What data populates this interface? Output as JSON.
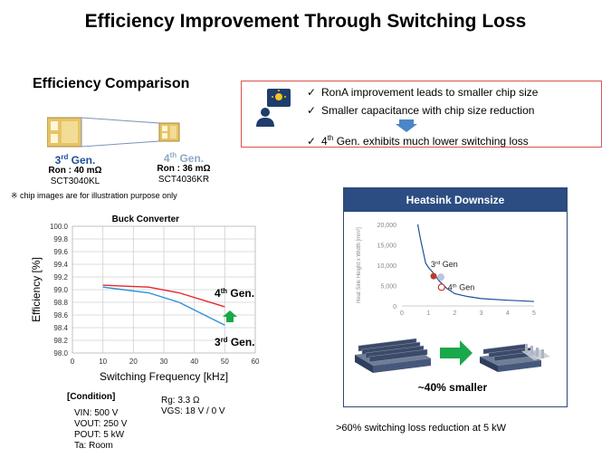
{
  "page": {
    "title": "Efficiency Improvement Through Switching Loss",
    "efficiency_heading": "Efficiency Comparison",
    "chip_note": "※ chip images are for illustration purpose only"
  },
  "chips": {
    "gen3": {
      "name_main": "3",
      "name_sup": "rd",
      "name_rest": " Gen.",
      "ron": "Ron : 40 mΩ",
      "part": "SCT3040KL"
    },
    "gen4": {
      "name_main": "4",
      "name_sup": "th",
      "name_rest": " Gen.",
      "ron": "Ron : 36 mΩ",
      "part": "SCT4036KR"
    }
  },
  "info_box": {
    "bullet1": "RonA improvement leads to smaller chip size",
    "bullet2": "Smaller capacitance with chip size reduction",
    "bullet3_main": "4",
    "bullet3_sup": "th",
    "bullet3_rest": " Gen. exhibits much lower switching loss",
    "check": "✓"
  },
  "heatsink": {
    "title": "Heatsink Downsize",
    "smaller_label": "~40% smaller",
    "footer_note": ">60% switching loss reduction at 5 kW"
  },
  "conditions": {
    "label": "[Condition]",
    "vin": "VIN: 500 V",
    "vout": "VOUT: 250 V",
    "pout": "POUT:  5 kW",
    "ta": "Ta: Room",
    "rg": "Rg: 3.3 Ω",
    "vgs": "VGS: 18 V / 0 V"
  },
  "colors": {
    "gen4_line": "#e8262b",
    "gen3_line": "#2f8fd8",
    "arrow_green": "#1aa84a",
    "panel_blue": "#2b4d82"
  },
  "chart_data": [
    {
      "type": "line",
      "title": "Buck Converter",
      "xlabel": "Switching Frequency [kHz]",
      "ylabel": "Efficiency [%]",
      "xlim": [
        0,
        60
      ],
      "ylim": [
        98.0,
        100.0
      ],
      "x_ticks": [
        "0",
        "10",
        "20",
        "30",
        "40",
        "50",
        "60"
      ],
      "y_ticks": [
        "98.0",
        "98.2",
        "98.4",
        "98.6",
        "98.8",
        "99.0",
        "99.2",
        "99.4",
        "99.6",
        "99.8",
        "100.0"
      ],
      "grid": true,
      "series": [
        {
          "name": "4th Gen.",
          "label_main": "4",
          "label_sup": "th",
          "label_rest": " Gen.",
          "color": "#e8262b",
          "x": [
            10,
            25,
            35,
            50
          ],
          "y": [
            99.07,
            99.04,
            98.95,
            98.73
          ]
        },
        {
          "name": "3rd Gen.",
          "label_main": "3",
          "label_sup": "rd",
          "label_rest": " Gen.",
          "color": "#2f8fd8",
          "x": [
            10,
            25,
            35,
            50
          ],
          "y": [
            99.04,
            98.95,
            98.8,
            98.44
          ]
        }
      ]
    },
    {
      "type": "line",
      "title": "",
      "xlabel": "Heat Resistance [K/W]",
      "ylabel": "Heat Sink Height x Width [mm²]",
      "xlim": [
        0,
        5
      ],
      "ylim": [
        0,
        20000
      ],
      "x_ticks": [
        "0",
        "1",
        "2",
        "3",
        "4",
        "5"
      ],
      "y_ticks": [
        "0",
        "5,000",
        "10,000",
        "15,000",
        "20,000"
      ],
      "grid": false,
      "series": [
        {
          "color": "#1f4e9c",
          "x": [
            0.6,
            0.7,
            0.8,
            0.9,
            1.0,
            1.2,
            1.4,
            1.7,
            2.0,
            2.5,
            3.0,
            4.0,
            5.0
          ],
          "y": [
            20000,
            16500,
            13500,
            10500,
            9500,
            8000,
            6200,
            4300,
            3000,
            2300,
            1800,
            1400,
            1100
          ]
        }
      ],
      "markers": [
        {
          "label_main": "3",
          "label_sup": "rd",
          "label_rest": " Gen",
          "x": 1.2,
          "y": 7300,
          "color": "#c0392b"
        },
        {
          "label_main": "4",
          "label_sup": "th",
          "label_rest": " Gen",
          "x": 1.5,
          "y": 4600,
          "color": "#c0392b"
        }
      ]
    }
  ]
}
